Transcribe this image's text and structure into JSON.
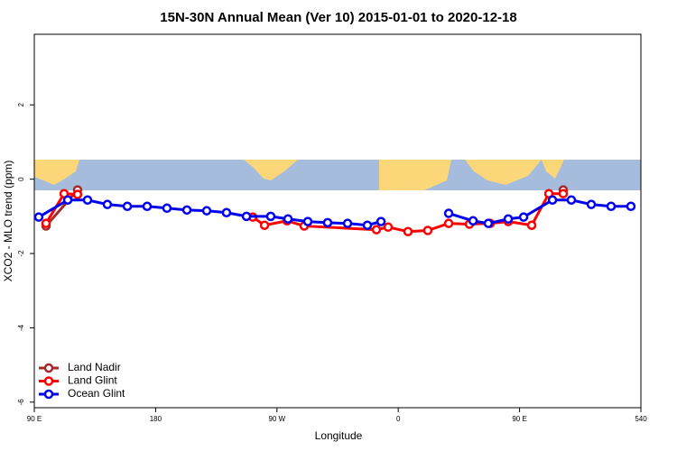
{
  "chart_data": {
    "type": "line",
    "title": "15N-30N Annual Mean (Ver 10)   2015-01-01 to 2020-12-18",
    "x_label": "Longitude",
    "y_label": "XCO2 - MLO trend (ppm)",
    "xlim": [
      90,
      540
    ],
    "xticks": [
      {
        "value": 90,
        "label": "90 E"
      },
      180,
      {
        "value": 270,
        "label": "90 W"
      },
      {
        "value": 360,
        "label": "0"
      },
      {
        "value": 450,
        "label": "90 E"
      },
      540
    ],
    "ylim": [
      -6.15,
      3.9
    ],
    "yticks": [
      -6,
      -4,
      -2,
      0,
      2
    ],
    "legend": "bottom-left",
    "series": [
      {
        "name": "Land Nadir",
        "color": "#a52a2a",
        "x": [
          98.7,
          122.1,
          null,
          482.4
        ],
        "values": [
          -1.26,
          -0.29,
          null,
          -0.29
        ]
      },
      {
        "name": "Land Glint",
        "color": "#ff0000",
        "x": [
          98.7,
          112.1,
          122.1,
          null,
          252.1,
          260.8,
          277.5,
          290.2,
          343.8,
          352.5,
          367.2,
          381.9,
          397.4,
          412.8,
          428.2,
          441.6,
          459,
          471.7,
          482.4
        ],
        "values": [
          -1.19,
          -0.39,
          -0.41,
          null,
          -1.02,
          -1.24,
          -1.12,
          -1.26,
          -1.36,
          -1.29,
          -1.41,
          -1.38,
          -1.19,
          -1.21,
          -1.19,
          -1.14,
          -1.24,
          -0.39,
          -0.39
        ]
      },
      {
        "name": "Ocean Glint",
        "color": "#0000ee",
        "x": [
          93.3,
          114.8,
          129.5,
          144.2,
          159,
          173.7,
          188.4,
          203.2,
          217.9,
          232.6,
          247.4,
          265.4,
          278.2,
          292.9,
          307.6,
          322.4,
          337.1,
          347.2,
          null,
          397.4,
          415.5,
          426.8,
          441.6,
          453,
          474.4,
          488.4,
          503.2,
          517.9,
          532.6
        ],
        "values": [
          -1.02,
          -0.56,
          -0.56,
          -0.68,
          -0.73,
          -0.73,
          -0.78,
          -0.83,
          -0.85,
          -0.9,
          -1.0,
          -1.0,
          -1.07,
          -1.14,
          -1.17,
          -1.19,
          -1.24,
          -1.14,
          null,
          -0.92,
          -1.12,
          -1.19,
          -1.07,
          -1.02,
          -0.56,
          -0.56,
          -0.68,
          -0.73,
          -0.73
        ]
      }
    ]
  }
}
